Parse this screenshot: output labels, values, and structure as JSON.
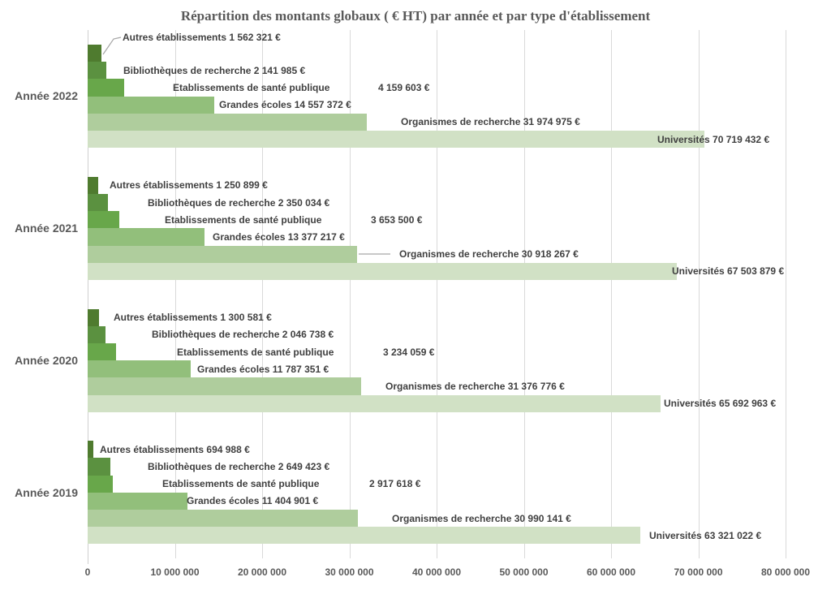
{
  "chart_data": {
    "type": "bar",
    "orientation": "horizontal",
    "title": "Répartition des montants globaux ( € HT) par année et par type d'établissement",
    "categories": [
      "Année 2022",
      "Année 2021",
      "Année 2020",
      "Année 2019"
    ],
    "series": [
      {
        "name": "Autres établissements",
        "color": "#4f7b2f",
        "values": [
          1562321,
          1250899,
          1300581,
          694988
        ],
        "value_labels": [
          "1 562 321 €",
          "1 250 899 €",
          "1 300 581 €",
          "694 988 €"
        ]
      },
      {
        "name": "Bibliothèques de recherche",
        "color": "#5b9140",
        "values": [
          2141985,
          2350034,
          2046738,
          2649423
        ],
        "value_labels": [
          "2 141 985 €",
          "2 350 034 €",
          "2 046 738 €",
          "2 649 423 €"
        ]
      },
      {
        "name": "Etablissements de santé publique",
        "color": "#68a74a",
        "values": [
          4159603,
          3653500,
          3234059,
          2917618
        ],
        "value_labels": [
          "4 159 603 €",
          "3 653 500 €",
          "3 234 059 €",
          "2 917 618 €"
        ]
      },
      {
        "name": "Grandes écoles",
        "color": "#92bf7b",
        "values": [
          14557372,
          13377217,
          11787351,
          11404901
        ],
        "value_labels": [
          "14 557 372 €",
          "13 377 217 €",
          "11 787 351 €",
          "11 404 901 €"
        ]
      },
      {
        "name": "Organismes de recherche",
        "color": "#afcd9d",
        "values": [
          31974975,
          30918267,
          31376776,
          30990141
        ],
        "value_labels": [
          "31 974 975 €",
          "30 918 267 €",
          "31 376 776 €",
          "30 990 141 €"
        ]
      },
      {
        "name": "Universités",
        "color": "#d1e1c5",
        "values": [
          70719432,
          67503879,
          65692963,
          63321022
        ],
        "value_labels": [
          "70 719 432 €",
          "67 503 879 €",
          "65 692 963 €",
          "63 321 022 €"
        ]
      }
    ],
    "x_axis": {
      "min": 0,
      "max": 80000000,
      "step": 10000000,
      "tick_labels": [
        "0",
        "10 000 000",
        "20 000 000",
        "30 000 000",
        "40 000 000",
        "50 000 000",
        "60 000 000",
        "70 000 000",
        "80 000 000"
      ]
    },
    "grid": true,
    "legend": "none",
    "data_label_position": "outside-end"
  },
  "colors": {
    "title_text": "#595959",
    "axis_text": "#595959",
    "data_label_text": "#404040",
    "gridline": "#d9d9d9",
    "leader_line": "#a6a6a6"
  }
}
